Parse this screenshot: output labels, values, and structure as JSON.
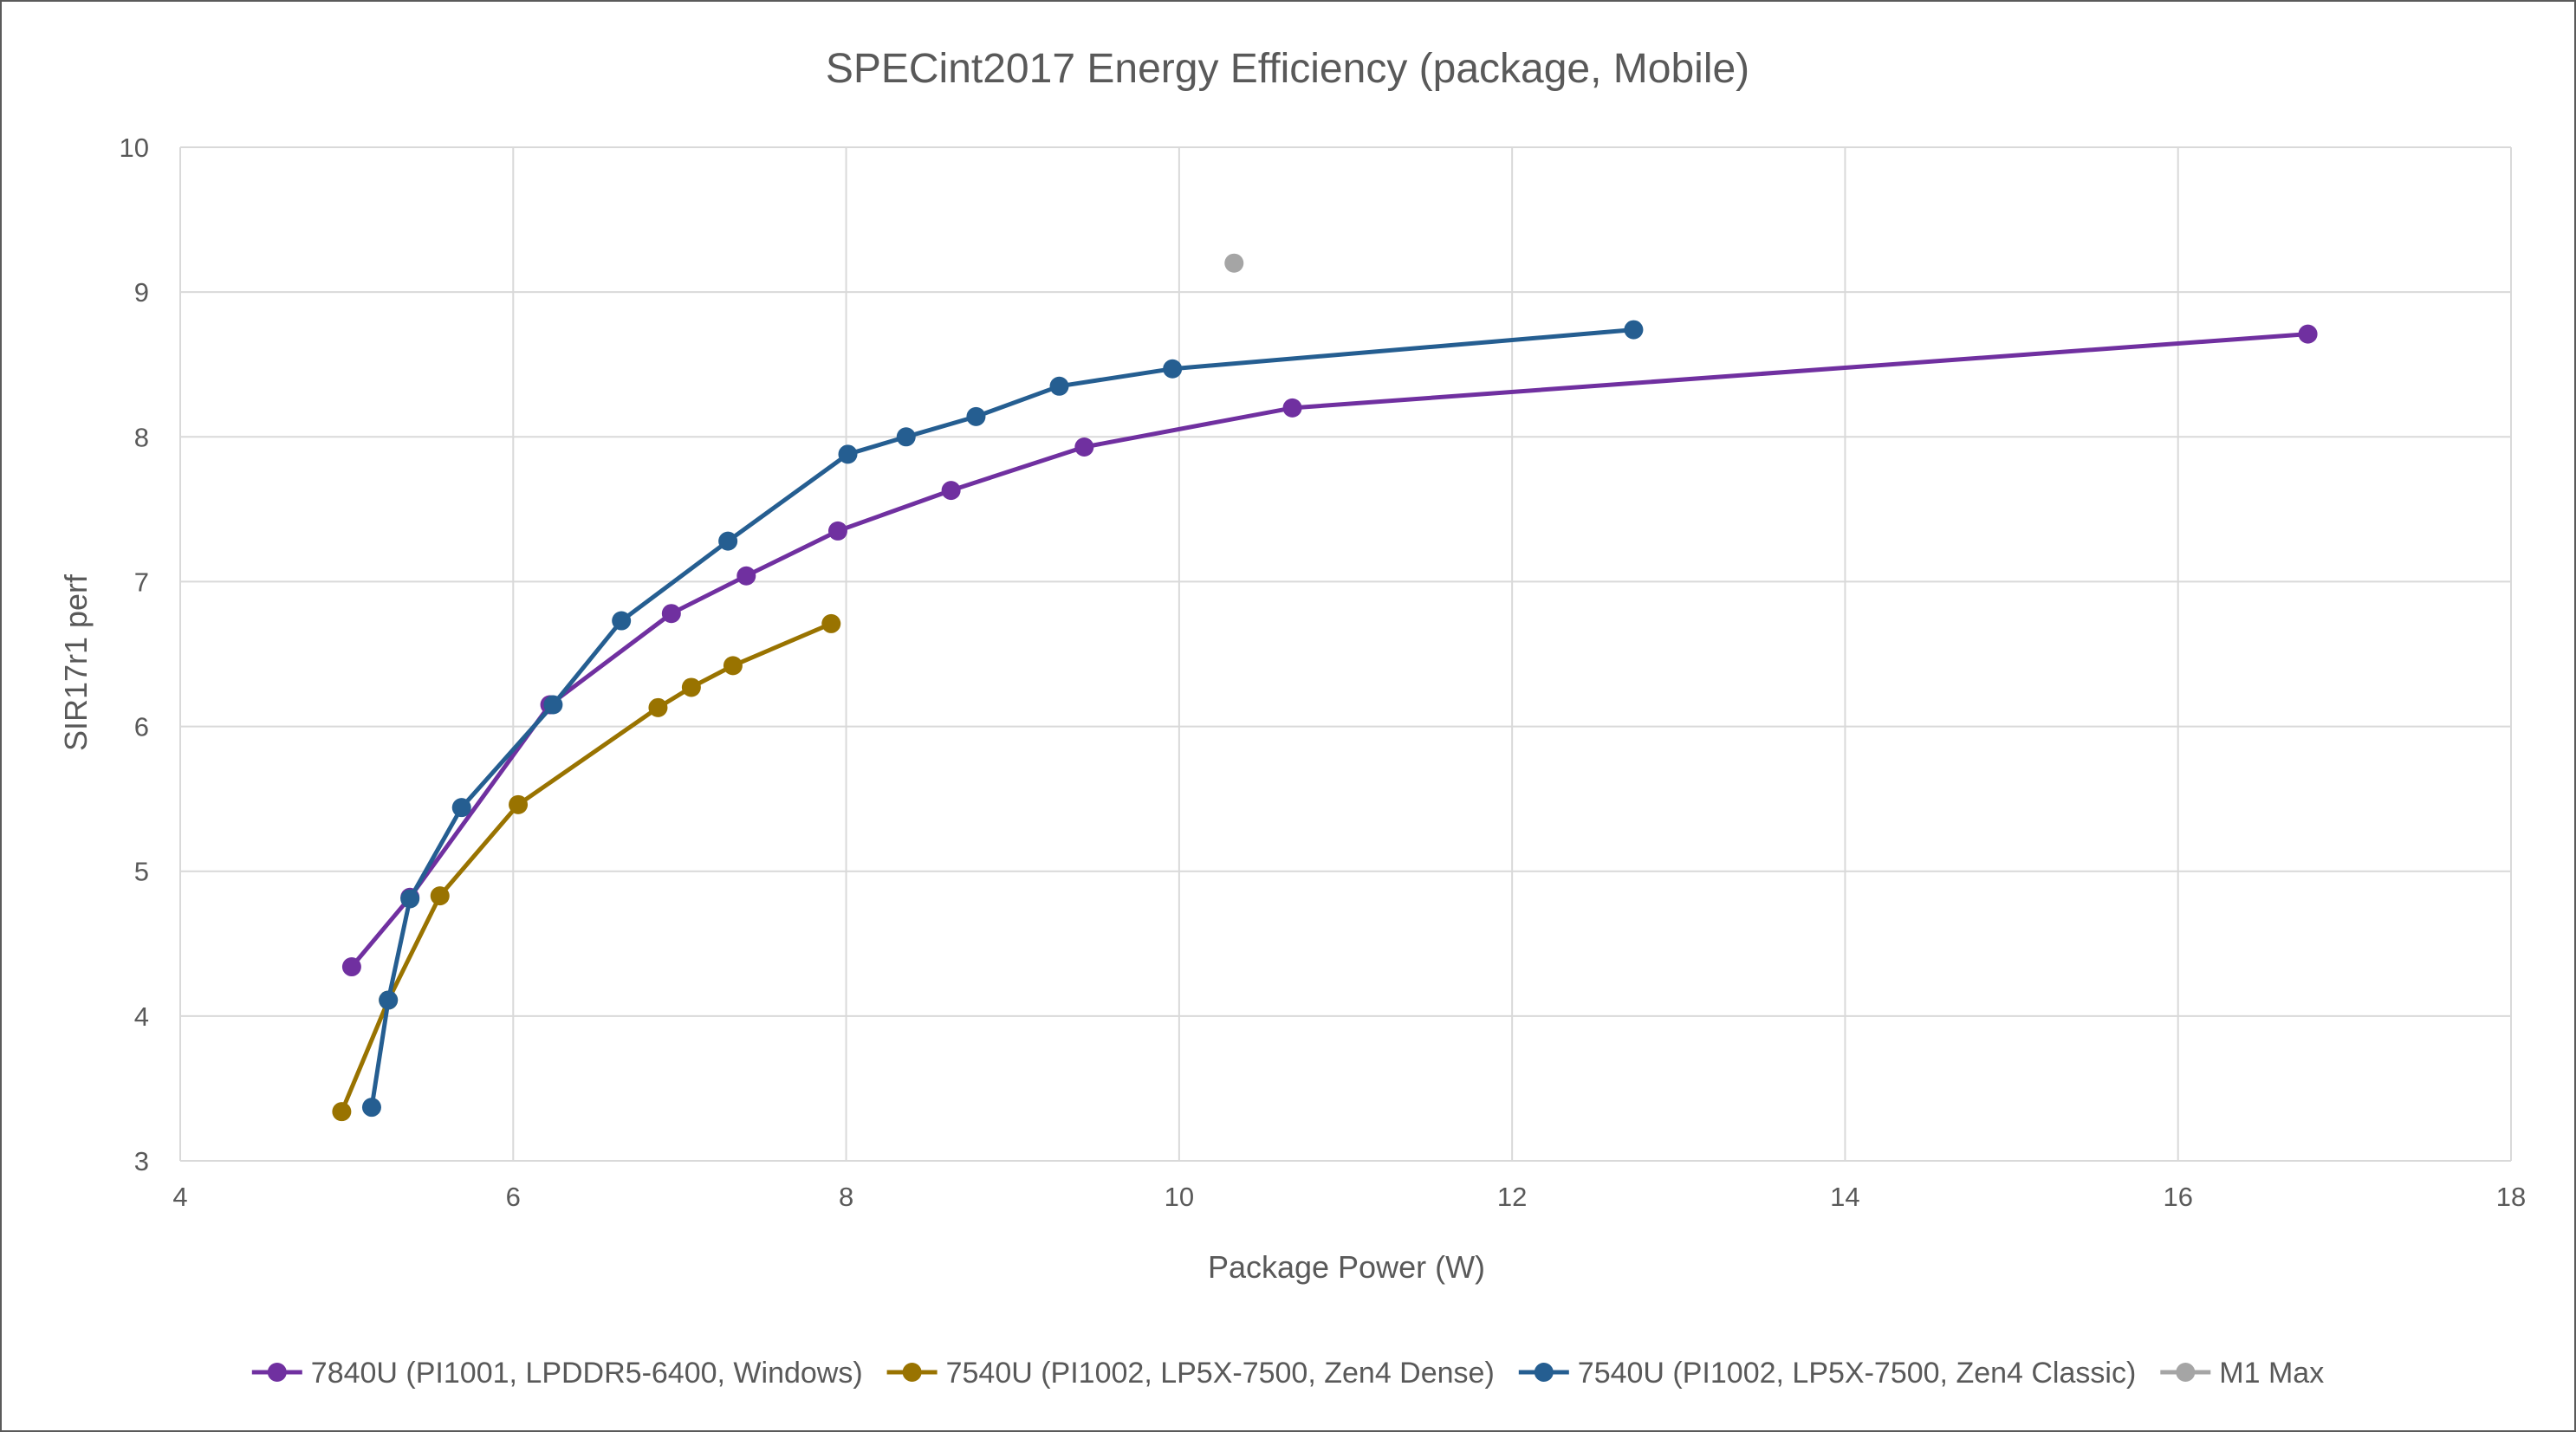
{
  "chart_data": {
    "type": "scatter",
    "title": "SPECint2017 Energy Efficiency (package, Mobile)",
    "xlabel": "Package Power (W)",
    "ylabel": "SIR17r1 perf",
    "xlim": [
      4,
      18
    ],
    "ylim": [
      3,
      10
    ],
    "xticks": [
      4,
      6,
      8,
      10,
      12,
      14,
      16,
      18
    ],
    "yticks": [
      3,
      4,
      5,
      6,
      7,
      8,
      9,
      10
    ],
    "grid": true,
    "legend_position": "bottom",
    "series": [
      {
        "name": "7840U (PI1001, LPDDR5-6400, Windows)",
        "color": "#7030a0",
        "lines": true,
        "points": [
          [
            5.03,
            4.34
          ],
          [
            5.38,
            4.82
          ],
          [
            6.22,
            6.15
          ],
          [
            6.95,
            6.78
          ],
          [
            7.4,
            7.04
          ],
          [
            7.95,
            7.35
          ],
          [
            8.63,
            7.63
          ],
          [
            9.43,
            7.93
          ],
          [
            10.68,
            8.2
          ],
          [
            16.78,
            8.71
          ]
        ]
      },
      {
        "name": "7540U (PI1002, LP5X-7500, Zen4 Dense)",
        "color": "#997300",
        "lines": true,
        "points": [
          [
            4.97,
            3.34
          ],
          [
            5.25,
            4.11
          ],
          [
            5.56,
            4.83
          ],
          [
            6.03,
            5.46
          ],
          [
            6.87,
            6.13
          ],
          [
            7.07,
            6.27
          ],
          [
            7.32,
            6.42
          ],
          [
            7.91,
            6.71
          ]
        ]
      },
      {
        "name": "7540U (PI1002, LP5X-7500, Zen4 Classic)",
        "color": "#255e91",
        "lines": true,
        "points": [
          [
            5.15,
            3.37
          ],
          [
            5.25,
            4.11
          ],
          [
            5.38,
            4.81
          ],
          [
            5.69,
            5.44
          ],
          [
            6.24,
            6.15
          ],
          [
            6.65,
            6.73
          ],
          [
            7.29,
            7.28
          ],
          [
            8.01,
            7.88
          ],
          [
            8.36,
            8.0
          ],
          [
            8.78,
            8.14
          ],
          [
            9.28,
            8.35
          ],
          [
            9.96,
            8.47
          ],
          [
            12.73,
            8.74
          ]
        ]
      },
      {
        "name": "M1 Max",
        "color": "#a5a5a5",
        "lines": false,
        "points": [
          [
            10.33,
            9.2
          ]
        ]
      }
    ]
  }
}
